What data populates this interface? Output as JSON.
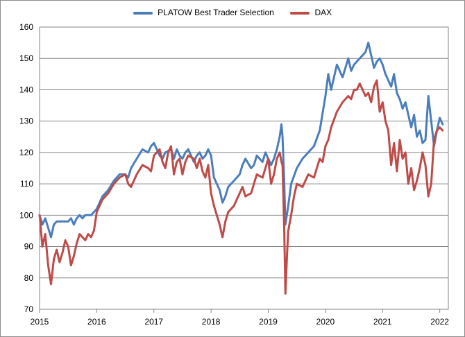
{
  "legend": [
    {
      "name": "PLATOW Best Trader Selection",
      "color": "#4a7ebb"
    },
    {
      "name": "DAX",
      "color": "#be4b48"
    }
  ],
  "chart_data": {
    "type": "line",
    "title": "",
    "xlabel": "",
    "ylabel": "",
    "xlim": [
      2015,
      2022.15
    ],
    "ylim": [
      70,
      160
    ],
    "x_ticks": [
      2015,
      2016,
      2017,
      2018,
      2019,
      2020,
      2021,
      2022
    ],
    "y_ticks": [
      70,
      80,
      90,
      100,
      110,
      120,
      130,
      140,
      150,
      160
    ],
    "grid": "horizontal",
    "legend_position": "top",
    "series": [
      {
        "name": "PLATOW Best Trader Selection",
        "color": "#4a7ebb",
        "x": [
          2015.0,
          2015.05,
          2015.1,
          2015.15,
          2015.2,
          2015.25,
          2015.3,
          2015.4,
          2015.5,
          2015.55,
          2015.6,
          2015.65,
          2015.7,
          2015.75,
          2015.8,
          2015.9,
          2015.95,
          2016.0,
          2016.05,
          2016.1,
          2016.2,
          2016.3,
          2016.4,
          2016.5,
          2016.55,
          2016.6,
          2016.7,
          2016.8,
          2016.9,
          2016.95,
          2017.0,
          2017.1,
          2017.15,
          2017.2,
          2017.3,
          2017.35,
          2017.4,
          2017.45,
          2017.5,
          2017.55,
          2017.6,
          2017.7,
          2017.75,
          2017.8,
          2017.85,
          2017.9,
          2017.95,
          2018.0,
          2018.05,
          2018.1,
          2018.15,
          2018.2,
          2018.25,
          2018.3,
          2018.4,
          2018.5,
          2018.55,
          2018.6,
          2018.7,
          2018.75,
          2018.8,
          2018.9,
          2018.95,
          2019.0,
          2019.05,
          2019.1,
          2019.15,
          2019.2,
          2019.23,
          2019.25,
          2019.28,
          2019.3,
          2019.35,
          2019.4,
          2019.5,
          2019.6,
          2019.7,
          2019.8,
          2019.9,
          2020.0,
          2020.05,
          2020.1,
          2020.2,
          2020.3,
          2020.4,
          2020.45,
          2020.5,
          2020.55,
          2020.6,
          2020.7,
          2020.75,
          2020.8,
          2020.85,
          2020.9,
          2020.95,
          2021.0,
          2021.05,
          2021.1,
          2021.15,
          2021.2,
          2021.25,
          2021.3,
          2021.35,
          2021.4,
          2021.5,
          2021.55,
          2021.6,
          2021.65,
          2021.7,
          2021.75,
          2021.8,
          2021.85,
          2021.9,
          2021.95,
          2022.0,
          2022.05
        ],
        "values": [
          100,
          97,
          99,
          96,
          93,
          97,
          98,
          98,
          98,
          99,
          97,
          99,
          100,
          99,
          100,
          100,
          101,
          102,
          104,
          106,
          108,
          111,
          113,
          113,
          112,
          115,
          118,
          121,
          120,
          122,
          123,
          119,
          118,
          120,
          121,
          118,
          121,
          119,
          118,
          120,
          121,
          117,
          119,
          120,
          118,
          119,
          121,
          119,
          112,
          110,
          108,
          104,
          106,
          109,
          111,
          113,
          116,
          118,
          115,
          116,
          119,
          117,
          120,
          118,
          116,
          118,
          121,
          125,
          129,
          125,
          110,
          97,
          103,
          110,
          115,
          118,
          120,
          122,
          127,
          138,
          145,
          140,
          148,
          144,
          150,
          146,
          148,
          149,
          150,
          152,
          155,
          151,
          147,
          149,
          150,
          148,
          145,
          143,
          141,
          145,
          139,
          137,
          134,
          136,
          128,
          132,
          125,
          127,
          123,
          124,
          138,
          130,
          122,
          127,
          131,
          129
        ]
      },
      {
        "name": "DAX",
        "color": "#be4b48",
        "x": [
          2015.0,
          2015.05,
          2015.1,
          2015.15,
          2015.2,
          2015.25,
          2015.3,
          2015.35,
          2015.4,
          2015.45,
          2015.5,
          2015.55,
          2015.6,
          2015.65,
          2015.7,
          2015.75,
          2015.8,
          2015.85,
          2015.9,
          2015.95,
          2016.0,
          2016.05,
          2016.1,
          2016.2,
          2016.3,
          2016.4,
          2016.5,
          2016.55,
          2016.6,
          2016.7,
          2016.8,
          2016.9,
          2016.95,
          2017.0,
          2017.1,
          2017.15,
          2017.2,
          2017.25,
          2017.3,
          2017.35,
          2017.4,
          2017.45,
          2017.5,
          2017.55,
          2017.6,
          2017.7,
          2017.75,
          2017.8,
          2017.85,
          2017.9,
          2017.95,
          2018.0,
          2018.05,
          2018.1,
          2018.15,
          2018.2,
          2018.25,
          2018.3,
          2018.4,
          2018.5,
          2018.55,
          2018.6,
          2018.7,
          2018.75,
          2018.8,
          2018.9,
          2018.95,
          2019.0,
          2019.05,
          2019.1,
          2019.15,
          2019.2,
          2019.23,
          2019.25,
          2019.28,
          2019.3,
          2019.33,
          2019.35,
          2019.4,
          2019.45,
          2019.5,
          2019.6,
          2019.7,
          2019.8,
          2019.85,
          2019.9,
          2019.95,
          2020.0,
          2020.05,
          2020.1,
          2020.2,
          2020.3,
          2020.4,
          2020.45,
          2020.5,
          2020.55,
          2020.6,
          2020.7,
          2020.75,
          2020.8,
          2020.85,
          2020.9,
          2020.95,
          2021.0,
          2021.05,
          2021.1,
          2021.15,
          2021.2,
          2021.25,
          2021.3,
          2021.35,
          2021.4,
          2021.45,
          2021.5,
          2021.55,
          2021.6,
          2021.65,
          2021.7,
          2021.75,
          2021.8,
          2021.85,
          2021.9,
          2021.95,
          2022.0,
          2022.05
        ],
        "values": [
          100,
          90,
          94,
          84,
          78,
          86,
          89,
          85,
          88,
          92,
          90,
          84,
          87,
          91,
          94,
          93,
          92,
          94,
          93,
          95,
          101,
          103,
          105,
          107,
          110,
          112,
          113,
          110,
          109,
          113,
          116,
          115,
          114,
          119,
          121,
          117,
          115,
          120,
          122,
          113,
          117,
          118,
          113,
          117,
          119,
          118,
          115,
          118,
          114,
          112,
          116,
          107,
          103,
          100,
          97,
          93,
          98,
          101,
          103,
          107,
          109,
          106,
          107,
          110,
          113,
          112,
          115,
          118,
          110,
          113,
          118,
          120,
          117,
          116,
          95,
          75,
          88,
          95,
          100,
          106,
          110,
          109,
          113,
          112,
          115,
          118,
          117,
          122,
          124,
          128,
          133,
          136,
          138,
          137,
          140,
          140,
          142,
          138,
          139,
          136,
          141,
          143,
          133,
          136,
          130,
          127,
          116,
          123,
          114,
          124,
          118,
          120,
          110,
          115,
          108,
          111,
          115,
          120,
          116,
          106,
          110,
          124,
          127,
          128,
          127
        ]
      }
    ]
  }
}
